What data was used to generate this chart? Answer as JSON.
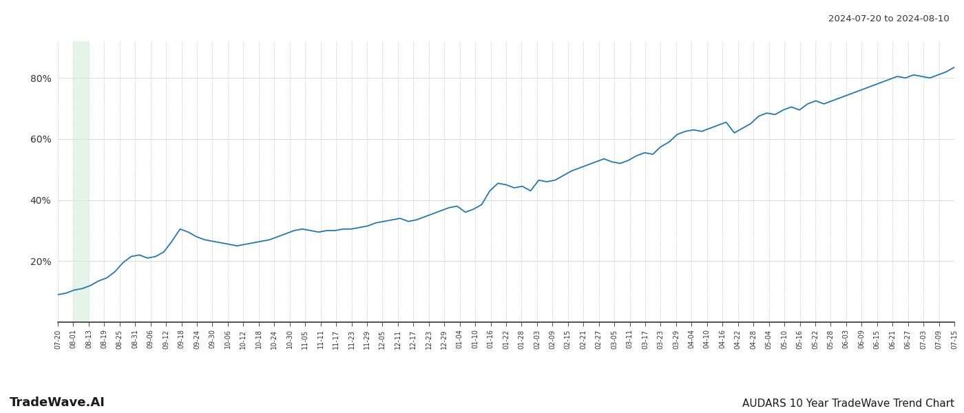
{
  "title_right": "2024-07-20 to 2024-08-10",
  "footer_left": "TradeWave.AI",
  "footer_right": "AUDARS 10 Year TradeWave Trend Chart",
  "line_color": "#1f77b4",
  "line_width": 1.3,
  "shade_color": "#d4edda",
  "shade_alpha": 0.6,
  "background_color": "#ffffff",
  "grid_color": "#cccccc",
  "ylim": [
    0,
    92
  ],
  "yticks": [
    20,
    40,
    60,
    80
  ],
  "x_labels": [
    "07-20",
    "08-01",
    "08-13",
    "08-19",
    "08-25",
    "08-31",
    "09-06",
    "09-12",
    "09-18",
    "09-24",
    "09-30",
    "10-06",
    "10-12",
    "10-18",
    "10-24",
    "10-30",
    "11-05",
    "11-11",
    "11-17",
    "11-23",
    "11-29",
    "12-05",
    "12-11",
    "12-17",
    "12-23",
    "12-29",
    "01-04",
    "01-10",
    "01-16",
    "01-22",
    "01-28",
    "02-03",
    "02-09",
    "02-15",
    "02-21",
    "02-27",
    "03-05",
    "03-11",
    "03-17",
    "03-23",
    "03-29",
    "04-04",
    "04-10",
    "04-16",
    "04-22",
    "04-28",
    "05-04",
    "05-10",
    "05-16",
    "05-22",
    "05-28",
    "06-03",
    "06-09",
    "06-15",
    "06-21",
    "06-27",
    "07-03",
    "07-09",
    "07-15"
  ],
  "shade_x_start_label": "08-01",
  "shade_x_end_label": "08-13",
  "y_values": [
    9.0,
    9.5,
    10.5,
    11.0,
    12.0,
    13.5,
    14.5,
    16.5,
    19.5,
    21.5,
    22.0,
    21.0,
    21.5,
    23.0,
    26.5,
    30.5,
    29.5,
    28.0,
    27.0,
    26.5,
    26.0,
    25.5,
    25.0,
    25.5,
    26.0,
    26.5,
    27.0,
    28.0,
    29.0,
    30.0,
    30.5,
    30.0,
    29.5,
    30.0,
    30.0,
    30.5,
    30.5,
    31.0,
    31.5,
    32.5,
    33.0,
    33.5,
    34.0,
    33.0,
    33.5,
    34.5,
    35.5,
    36.5,
    37.5,
    38.0,
    36.0,
    37.0,
    38.5,
    43.0,
    45.5,
    45.0,
    44.0,
    44.5,
    43.0,
    46.5,
    46.0,
    46.5,
    48.0,
    49.5,
    50.5,
    51.5,
    52.5,
    53.5,
    52.5,
    52.0,
    53.0,
    54.5,
    55.5,
    55.0,
    57.5,
    59.0,
    61.5,
    62.5,
    63.0,
    62.5,
    63.5,
    64.5,
    65.5,
    62.0,
    63.5,
    65.0,
    67.5,
    68.5,
    68.0,
    69.5,
    70.5,
    69.5,
    71.5,
    72.5,
    71.5,
    72.5,
    73.5,
    74.5,
    75.5,
    76.5,
    77.5,
    78.5,
    79.5,
    80.5,
    80.0,
    81.0,
    80.5,
    80.0,
    81.0,
    82.0,
    83.5
  ]
}
